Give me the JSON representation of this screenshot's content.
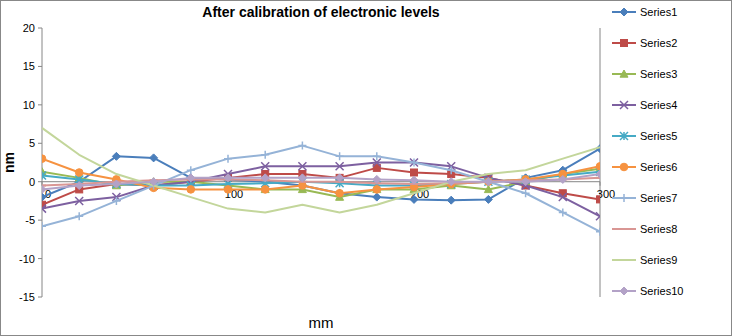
{
  "chart_data": {
    "type": "line",
    "title": "After calibration of electronic levels",
    "x_label": "mm",
    "y_label": "nm",
    "x": [
      0,
      20,
      40,
      60,
      80,
      100,
      120,
      140,
      160,
      180,
      200,
      220,
      240,
      260,
      280,
      300
    ],
    "xlim": [
      0,
      300
    ],
    "xticks": [
      0,
      100,
      200,
      300
    ],
    "ylim": [
      -15,
      20
    ],
    "yticks": [
      -15,
      -10,
      -5,
      0,
      5,
      10,
      15,
      20
    ],
    "grid": false,
    "legend": "right",
    "series": [
      {
        "name": "Series1",
        "color": "#4a7ebb",
        "marker": "diamond",
        "values": [
          -2,
          0,
          3.3,
          3.1,
          0.5,
          0.3,
          0,
          -0.5,
          -1.5,
          -2,
          -2.3,
          -2.4,
          -2.3,
          0.5,
          1.5,
          4.3
        ]
      },
      {
        "name": "Series2",
        "color": "#be4b48",
        "marker": "square",
        "values": [
          -3,
          -1,
          -0.3,
          -0.5,
          0,
          0.5,
          1,
          1,
          0.5,
          1.8,
          1.2,
          1,
          0.5,
          -0.5,
          -1.5,
          -2.3
        ]
      },
      {
        "name": "Series3",
        "color": "#98b954",
        "marker": "triangle",
        "values": [
          1.3,
          0.5,
          -0.5,
          0,
          0,
          -0.5,
          -1,
          -1,
          -2,
          -1,
          -1,
          -0.5,
          -1,
          0,
          1,
          1.7
        ]
      },
      {
        "name": "Series4",
        "color": "#7d60a0",
        "marker": "x",
        "values": [
          -3.5,
          -2.5,
          -2,
          -0.5,
          0,
          1,
          2,
          2,
          2,
          2.5,
          2.5,
          2,
          0.5,
          -0.5,
          -2,
          -4.5
        ]
      },
      {
        "name": "Series5",
        "color": "#46aac5",
        "marker": "star",
        "values": [
          0.8,
          0.3,
          -0.3,
          -0.5,
          -0.5,
          -0.3,
          -0.2,
          0,
          -0.2,
          -0.5,
          -0.5,
          -0.3,
          0,
          0.3,
          0.8,
          1.3
        ]
      },
      {
        "name": "Series6",
        "color": "#f69240",
        "marker": "circle",
        "values": [
          3,
          1.2,
          0.3,
          -0.8,
          -1,
          -1,
          -1,
          -0.5,
          -1.5,
          -1,
          -0.7,
          -0.3,
          0,
          0.3,
          1,
          2
        ]
      },
      {
        "name": "Series7",
        "color": "#95b3d7",
        "marker": "plus",
        "values": [
          -5.8,
          -4.5,
          -2.5,
          -0.5,
          1.5,
          3,
          3.5,
          4.7,
          3.3,
          3.3,
          2.5,
          1.5,
          0,
          -1.5,
          -4,
          -6.5
        ]
      },
      {
        "name": "Series8",
        "color": "#d99694",
        "marker": "dash",
        "values": [
          -0.5,
          -0.3,
          0,
          0.2,
          0.3,
          0.3,
          0.2,
          0,
          0,
          -0.2,
          -0.3,
          -0.2,
          0,
          0.2,
          0.3,
          0.5
        ]
      },
      {
        "name": "Series9",
        "color": "#c3d69b",
        "marker": "none",
        "values": [
          7,
          3.5,
          1,
          -0.5,
          -2,
          -3.5,
          -4,
          -3,
          -4,
          -3,
          -1.5,
          0,
          1,
          1.5,
          3,
          4.5
        ]
      },
      {
        "name": "Series10",
        "color": "#b3a2c7",
        "marker": "diamond",
        "values": [
          -1,
          -0.5,
          -0.3,
          0,
          0.5,
          0.5,
          0.5,
          0.5,
          0.5,
          0.3,
          0.2,
          0,
          0,
          0,
          0.3,
          1
        ]
      }
    ]
  }
}
